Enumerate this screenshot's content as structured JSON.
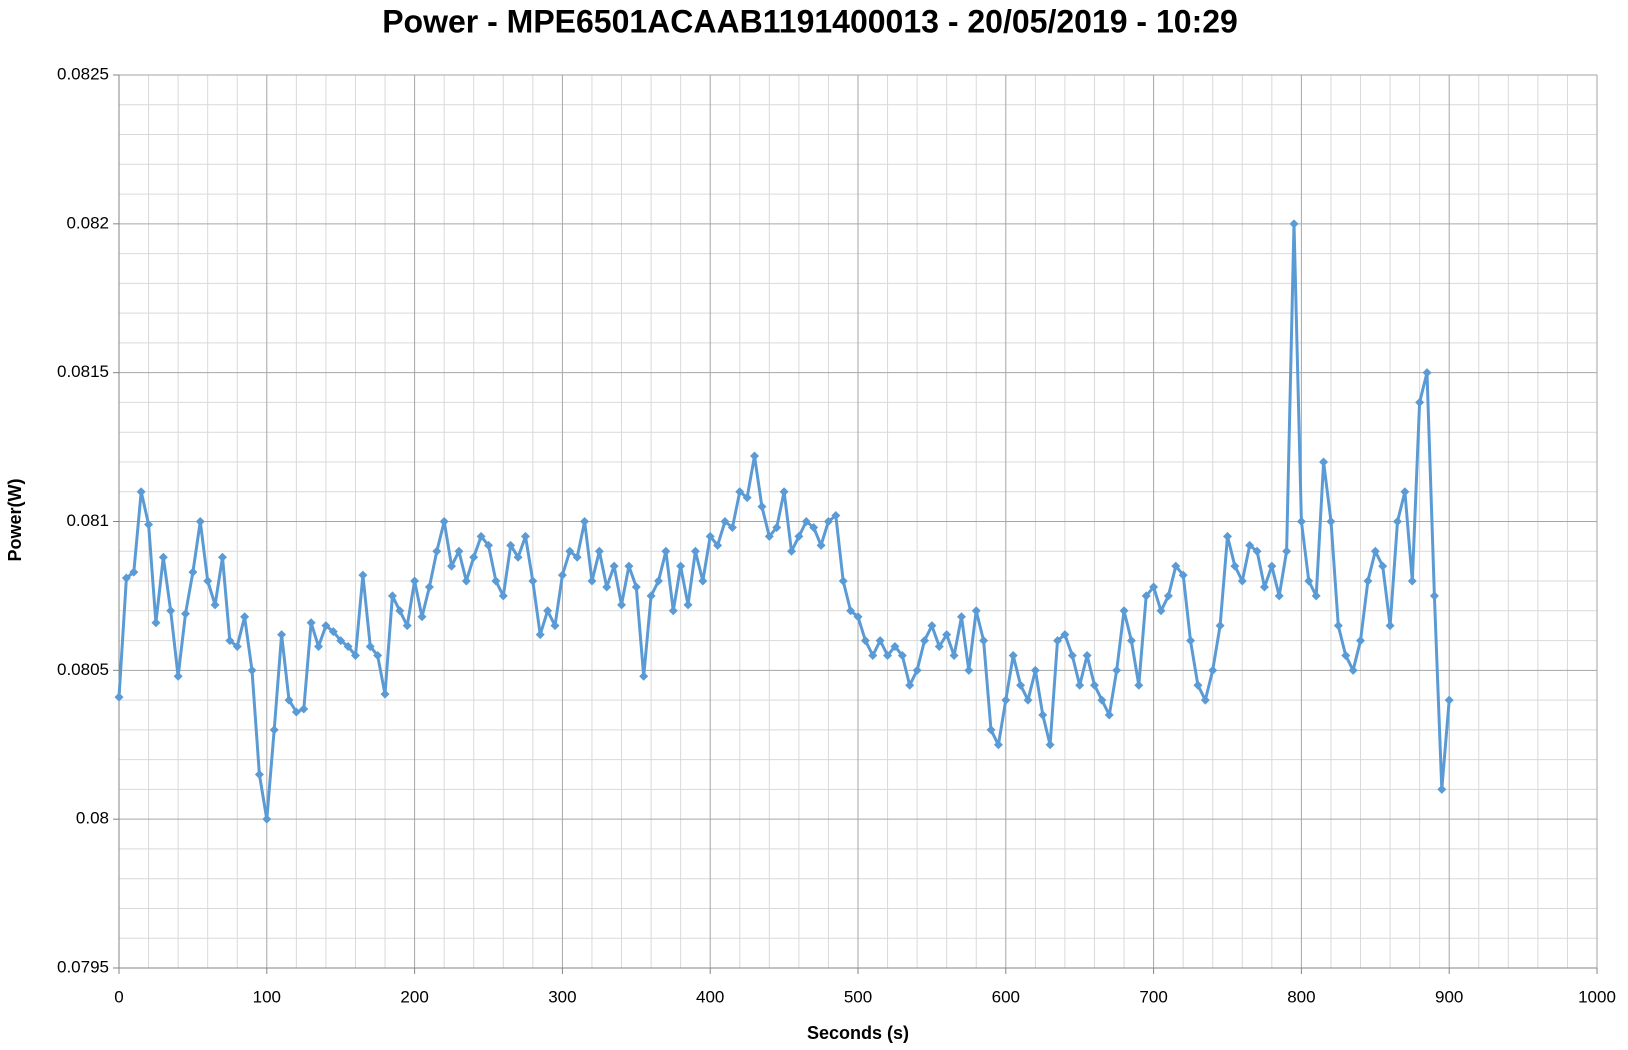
{
  "chart_data": {
    "type": "line",
    "title": "Power - MPE6501ACAAB1191400013 - 20/05/2019 - 10:29",
    "x_label": "Seconds (s)",
    "y_label": "Power(W)",
    "xlim": [
      0,
      1000
    ],
    "xticks": [
      0,
      100,
      200,
      300,
      400,
      500,
      600,
      700,
      800,
      900,
      1000
    ],
    "ylim": [
      0.0795,
      0.0825
    ],
    "yticks": [
      0.0795,
      0.08,
      0.0805,
      0.081,
      0.0815,
      0.082,
      0.0825
    ],
    "grid": true,
    "series": [
      {
        "color": "#5b9bd5",
        "x": [
          0,
          5,
          10,
          15,
          20,
          25,
          30,
          35,
          40,
          45,
          50,
          55,
          60,
          65,
          70,
          75,
          80,
          85,
          90,
          95,
          100,
          105,
          110,
          115,
          120,
          125,
          130,
          135,
          140,
          145,
          150,
          155,
          160,
          165,
          170,
          175,
          180,
          185,
          190,
          195,
          200,
          205,
          210,
          215,
          220,
          225,
          230,
          235,
          240,
          245,
          250,
          255,
          260,
          265,
          270,
          275,
          280,
          285,
          290,
          295,
          300,
          305,
          310,
          315,
          320,
          325,
          330,
          335,
          340,
          345,
          350,
          355,
          360,
          365,
          370,
          375,
          380,
          385,
          390,
          395,
          400,
          405,
          410,
          415,
          420,
          425,
          430,
          435,
          440,
          445,
          450,
          455,
          460,
          465,
          470,
          475,
          480,
          485,
          490,
          495,
          500,
          505,
          510,
          515,
          520,
          525,
          530,
          535,
          540,
          545,
          550,
          555,
          560,
          565,
          570,
          575,
          580,
          585,
          590,
          595,
          600,
          605,
          610,
          615,
          620,
          625,
          630,
          635,
          640,
          645,
          650,
          655,
          660,
          665,
          670,
          675,
          680,
          685,
          690,
          695,
          700,
          705,
          710,
          715,
          720,
          725,
          730,
          735,
          740,
          745,
          750,
          755,
          760,
          765,
          770,
          775,
          780,
          785,
          790,
          795,
          800,
          805,
          810,
          815,
          820,
          825,
          830,
          835,
          840,
          845,
          850,
          855,
          860,
          865,
          870,
          875,
          880,
          885,
          890,
          895,
          900
        ],
        "values": [
          0.08041,
          0.08081,
          0.08083,
          0.0811,
          0.08099,
          0.08066,
          0.08088,
          0.0807,
          0.08048,
          0.08069,
          0.08083,
          0.081,
          0.0808,
          0.08072,
          0.08088,
          0.0806,
          0.08058,
          0.08068,
          0.0805,
          0.08015,
          0.08,
          0.0803,
          0.08062,
          0.0804,
          0.08036,
          0.08037,
          0.08066,
          0.08058,
          0.08065,
          0.08063,
          0.0806,
          0.08058,
          0.08055,
          0.08082,
          0.08058,
          0.08055,
          0.08042,
          0.08075,
          0.0807,
          0.08065,
          0.0808,
          0.08068,
          0.08078,
          0.0809,
          0.081,
          0.08085,
          0.0809,
          0.0808,
          0.08088,
          0.08095,
          0.08092,
          0.0808,
          0.08075,
          0.08092,
          0.08088,
          0.08095,
          0.0808,
          0.08062,
          0.0807,
          0.08065,
          0.08082,
          0.0809,
          0.08088,
          0.081,
          0.0808,
          0.0809,
          0.08078,
          0.08085,
          0.08072,
          0.08085,
          0.08078,
          0.08048,
          0.08075,
          0.0808,
          0.0809,
          0.0807,
          0.08085,
          0.08072,
          0.0809,
          0.0808,
          0.08095,
          0.08092,
          0.081,
          0.08098,
          0.0811,
          0.08108,
          0.08122,
          0.08105,
          0.08095,
          0.08098,
          0.0811,
          0.0809,
          0.08095,
          0.081,
          0.08098,
          0.08092,
          0.081,
          0.08102,
          0.0808,
          0.0807,
          0.08068,
          0.0806,
          0.08055,
          0.0806,
          0.08055,
          0.08058,
          0.08055,
          0.08045,
          0.0805,
          0.0806,
          0.08065,
          0.08058,
          0.08062,
          0.08055,
          0.08068,
          0.0805,
          0.0807,
          0.0806,
          0.0803,
          0.08025,
          0.0804,
          0.08055,
          0.08045,
          0.0804,
          0.0805,
          0.08035,
          0.08025,
          0.0806,
          0.08062,
          0.08055,
          0.08045,
          0.08055,
          0.08045,
          0.0804,
          0.08035,
          0.0805,
          0.0807,
          0.0806,
          0.08045,
          0.08075,
          0.08078,
          0.0807,
          0.08075,
          0.08085,
          0.08082,
          0.0806,
          0.08045,
          0.0804,
          0.0805,
          0.08065,
          0.08095,
          0.08085,
          0.0808,
          0.08092,
          0.0809,
          0.08078,
          0.08085,
          0.08075,
          0.0809,
          0.082,
          0.081,
          0.0808,
          0.08075,
          0.0812,
          0.081,
          0.08065,
          0.08055,
          0.0805,
          0.0806,
          0.0808,
          0.0809,
          0.08085,
          0.08065,
          0.081,
          0.0811,
          0.0808,
          0.0814,
          0.0815,
          0.08075,
          0.0801,
          0.0804
        ]
      }
    ]
  }
}
